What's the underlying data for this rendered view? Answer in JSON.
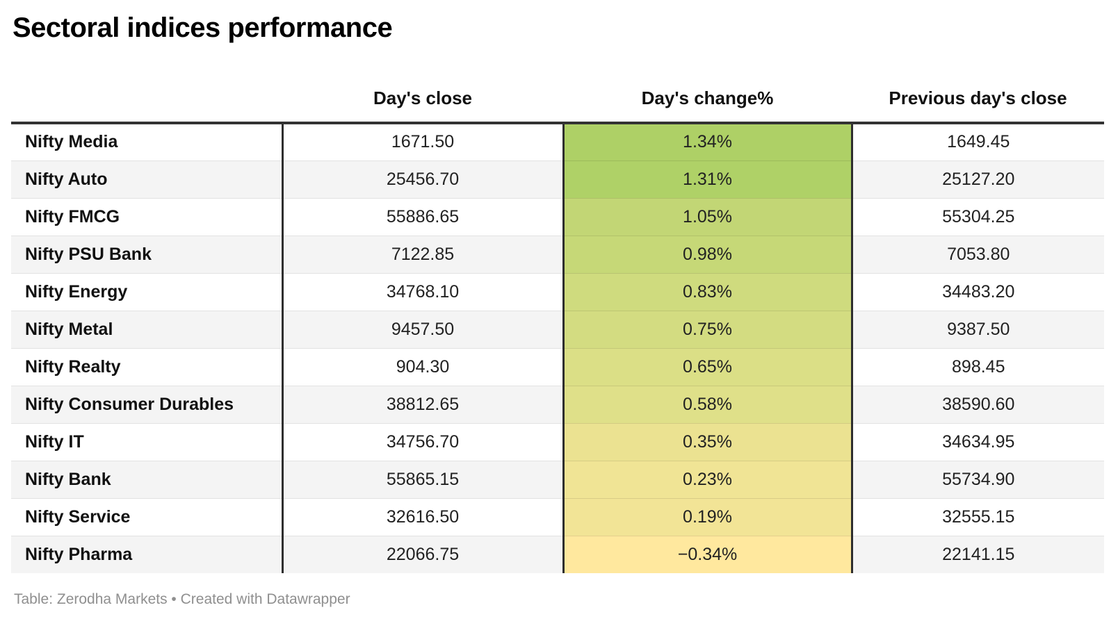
{
  "title": "Sectoral indices performance",
  "accent_border_color": "#333333",
  "zebra_color": "#f4f4f4",
  "table": {
    "headers": [
      "",
      "Day's close",
      "Day's change%",
      "Previous day's close"
    ],
    "rows": [
      {
        "label": "Nifty Media",
        "close": "1671.50",
        "change": "1.34%",
        "prev": "1649.45",
        "color": "#aed066"
      },
      {
        "label": "Nifty Auto",
        "close": "25456.70",
        "change": "1.31%",
        "prev": "25127.20",
        "color": "#afd167"
      },
      {
        "label": "Nifty FMCG",
        "close": "55886.65",
        "change": "1.05%",
        "prev": "55304.25",
        "color": "#c2d675"
      },
      {
        "label": "Nifty PSU Bank",
        "close": "7122.85",
        "change": "0.98%",
        "prev": "7053.80",
        "color": "#c6d877"
      },
      {
        "label": "Nifty Energy",
        "close": "34768.10",
        "change": "0.83%",
        "prev": "34483.20",
        "color": "#cfdb7e"
      },
      {
        "label": "Nifty Metal",
        "close": "9457.50",
        "change": "0.75%",
        "prev": "9387.50",
        "color": "#d3dc81"
      },
      {
        "label": "Nifty Realty",
        "close": "904.30",
        "change": "0.65%",
        "prev": "898.45",
        "color": "#dbdf86"
      },
      {
        "label": "Nifty Consumer Durables",
        "close": "38812.65",
        "change": "0.58%",
        "prev": "38590.60",
        "color": "#dfe089"
      },
      {
        "label": "Nifty IT",
        "close": "34756.70",
        "change": "0.35%",
        "prev": "34634.95",
        "color": "#ebe291"
      },
      {
        "label": "Nifty Bank",
        "close": "55865.15",
        "change": "0.23%",
        "prev": "55734.90",
        "color": "#f0e495"
      },
      {
        "label": "Nifty Service",
        "close": "32616.50",
        "change": "0.19%",
        "prev": "32555.15",
        "color": "#f2e496"
      },
      {
        "label": "Nifty Pharma",
        "close": "22066.75",
        "change": "−0.34%",
        "prev": "22141.15",
        "color": "#ffe89e"
      }
    ]
  },
  "footer": "Table: Zerodha Markets • Created with Datawrapper",
  "chart_data": {
    "type": "table",
    "title": "Sectoral indices performance",
    "columns": [
      "Index",
      "Day's close",
      "Day's change%",
      "Previous day's close"
    ],
    "rows": [
      [
        "Nifty Media",
        1671.5,
        1.34,
        1649.45
      ],
      [
        "Nifty Auto",
        25456.7,
        1.31,
        25127.2
      ],
      [
        "Nifty FMCG",
        55886.65,
        1.05,
        55304.25
      ],
      [
        "Nifty PSU Bank",
        7122.85,
        0.98,
        7053.8
      ],
      [
        "Nifty Energy",
        34768.1,
        0.83,
        34483.2
      ],
      [
        "Nifty Metal",
        9457.5,
        0.75,
        9387.5
      ],
      [
        "Nifty Realty",
        904.3,
        0.65,
        898.45
      ],
      [
        "Nifty Consumer Durables",
        38812.65,
        0.58,
        38590.6
      ],
      [
        "Nifty IT",
        34756.7,
        0.35,
        34634.95
      ],
      [
        "Nifty Bank",
        55865.15,
        0.23,
        55734.9
      ],
      [
        "Nifty Service",
        32616.5,
        0.19,
        32555.15
      ],
      [
        "Nifty Pharma",
        22066.75,
        -0.34,
        22141.15
      ]
    ],
    "heatmap_column": "Day's change%",
    "heatmap_scale": [
      "#aed066",
      "#ffe89e"
    ],
    "layout_hints": {
      "zebra_striping": true,
      "value_alignment": "center",
      "label_alignment": "left"
    }
  }
}
